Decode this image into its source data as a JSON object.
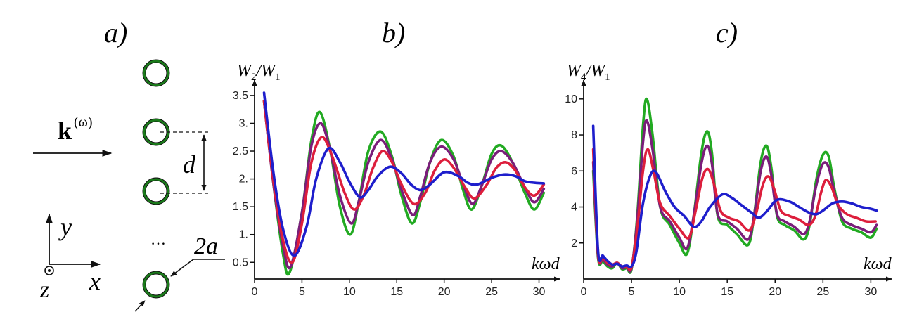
{
  "panel_a": {
    "label": "a)",
    "wave_vector_bold": "k",
    "wave_vector_sup": "(ω)",
    "spacing_label": "d",
    "radius_label": "2a",
    "ellipsis": "…",
    "axis_y": "y",
    "axis_x": "x",
    "axis_z": "z",
    "ring_color": "#1a7a1a"
  },
  "chart_data": [
    {
      "type": "line",
      "panel_label": "b)",
      "ylabel_main": "W",
      "ylabel_sub1": "2",
      "ylabel_sep": "/W",
      "ylabel_sub2": "1",
      "xlabel": "kωd",
      "xlim": [
        0,
        31
      ],
      "ylim": [
        0.2,
        3.6
      ],
      "x_ticks": [
        0,
        5,
        10,
        15,
        20,
        25,
        30
      ],
      "y_ticks": [
        0.5,
        1,
        1.5,
        2,
        2.5,
        3,
        3.5
      ],
      "y_tick_labels": [
        "0.5",
        "1.",
        "1.5",
        "2.",
        "2.5",
        "3.",
        "3.5"
      ],
      "series": [
        {
          "color": "#22aa22",
          "x": [
            1,
            2,
            3,
            3.7,
            5,
            6,
            6.9,
            8,
            9,
            10.1,
            11,
            12,
            13.3,
            14.5,
            15.5,
            16.6,
            17.5,
            18.5,
            19.7,
            21,
            22,
            22.9,
            24,
            25,
            26,
            27.2,
            28.5,
            29.5,
            30.5
          ],
          "y": [
            3.4,
            1.9,
            0.65,
            0.32,
            1.4,
            2.7,
            3.2,
            2.5,
            1.5,
            1.0,
            1.6,
            2.5,
            2.85,
            2.4,
            1.7,
            1.2,
            1.6,
            2.3,
            2.7,
            2.4,
            1.8,
            1.45,
            1.9,
            2.45,
            2.6,
            2.3,
            1.75,
            1.45,
            1.75
          ]
        },
        {
          "color": "#7a1e7a",
          "x": [
            1,
            2,
            3,
            3.8,
            5,
            6,
            7,
            8,
            9,
            10.2,
            11,
            12,
            13.3,
            14.5,
            15.5,
            16.7,
            17.5,
            18.5,
            19.7,
            21,
            22,
            23,
            24,
            25,
            26,
            27.2,
            28.5,
            29.5,
            30.5
          ],
          "y": [
            3.4,
            1.9,
            0.8,
            0.42,
            1.4,
            2.6,
            3.0,
            2.5,
            1.7,
            1.2,
            1.6,
            2.3,
            2.7,
            2.35,
            1.8,
            1.35,
            1.7,
            2.3,
            2.58,
            2.35,
            1.9,
            1.55,
            1.9,
            2.35,
            2.5,
            2.3,
            1.85,
            1.58,
            1.82
          ]
        },
        {
          "color": "#dd1e3c",
          "x": [
            1,
            2,
            3,
            4,
            5,
            6,
            7.1,
            8.2,
            9.5,
            10.5,
            11.5,
            12.5,
            13.5,
            14.5,
            15.5,
            16.8,
            18,
            19,
            20,
            21,
            22.2,
            23.2,
            24.5,
            25.5,
            26.5,
            27.5,
            28.5,
            29.5,
            30.5
          ],
          "y": [
            3.4,
            1.95,
            0.9,
            0.5,
            1.2,
            2.3,
            2.75,
            2.4,
            1.75,
            1.45,
            1.7,
            2.2,
            2.5,
            2.3,
            1.9,
            1.55,
            1.75,
            2.15,
            2.35,
            2.2,
            1.85,
            1.65,
            1.9,
            2.2,
            2.3,
            2.15,
            1.85,
            1.7,
            1.9
          ]
        },
        {
          "color": "#1e1ecc",
          "x": [
            1,
            2,
            3,
            4.2,
            5.5,
            6.5,
            7.8,
            9,
            10,
            11.1,
            12,
            13,
            14.3,
            15.5,
            16.5,
            17.5,
            18.5,
            20,
            21.5,
            22.5,
            23.5,
            25,
            26.3,
            27.5,
            28.5,
            29.5,
            30.5
          ],
          "y": [
            3.55,
            2.1,
            1.1,
            0.62,
            1.15,
            2.0,
            2.55,
            2.3,
            1.95,
            1.67,
            1.8,
            2.05,
            2.22,
            2.1,
            1.9,
            1.8,
            1.9,
            2.12,
            2.05,
            1.93,
            1.9,
            2.02,
            2.08,
            2.05,
            1.96,
            1.93,
            1.92
          ]
        }
      ]
    },
    {
      "type": "line",
      "panel_label": "c)",
      "ylabel_main": "W",
      "ylabel_sub1": "4",
      "ylabel_sep": "/W",
      "ylabel_sub2": "1",
      "xlabel": "kωd",
      "xlim": [
        0,
        31
      ],
      "ylim": [
        0,
        10.5
      ],
      "x_ticks": [
        0,
        5,
        10,
        15,
        20,
        25,
        30
      ],
      "y_ticks": [
        2,
        4,
        6,
        8,
        10
      ],
      "y_tick_labels": [
        "2",
        "4",
        "6",
        "8",
        "10"
      ],
      "series": [
        {
          "color": "#22aa22",
          "x": [
            1,
            1.5,
            2,
            2.5,
            3,
            3.5,
            4,
            4.5,
            5,
            5.6,
            6.2,
            6.6,
            7.2,
            8,
            9,
            10,
            10.8,
            11.5,
            12.3,
            12.9,
            13.4,
            14,
            15,
            16,
            17.2,
            17.8,
            18.5,
            19.1,
            19.6,
            20.2,
            21,
            22,
            23,
            23.6,
            24.3,
            25,
            25.6,
            26.2,
            27,
            28,
            29,
            30,
            30.6
          ],
          "y": [
            6.0,
            1.2,
            1.0,
            0.7,
            0.6,
            0.9,
            0.55,
            0.6,
            0.55,
            3.5,
            8.5,
            10.0,
            8.0,
            4.0,
            3.0,
            2.0,
            1.4,
            3.5,
            7.0,
            8.2,
            7.0,
            3.5,
            3.0,
            2.5,
            1.9,
            3.5,
            6.5,
            7.4,
            6.2,
            3.5,
            3.0,
            2.7,
            2.2,
            3.0,
            5.5,
            6.9,
            6.8,
            5.0,
            3.2,
            2.8,
            2.6,
            2.3,
            2.8
          ]
        },
        {
          "color": "#7a1e7a",
          "x": [
            1,
            1.5,
            2,
            2.5,
            3,
            3.5,
            4,
            4.5,
            5,
            5.6,
            6.2,
            6.6,
            7.2,
            8,
            9,
            10,
            10.8,
            11.5,
            12.3,
            12.9,
            13.4,
            14,
            15,
            16,
            17.2,
            17.8,
            18.5,
            19.1,
            19.6,
            20.2,
            21,
            22,
            23,
            23.6,
            24.3,
            25,
            25.6,
            26.2,
            27,
            28,
            29,
            30,
            30.6
          ],
          "y": [
            6.5,
            1.3,
            1.1,
            0.8,
            0.7,
            0.9,
            0.6,
            0.65,
            0.6,
            3.3,
            7.6,
            8.8,
            7.2,
            4.0,
            3.2,
            2.3,
            1.7,
            3.5,
            6.4,
            7.4,
            6.4,
            3.6,
            3.2,
            2.8,
            2.2,
            3.5,
            6.0,
            6.8,
            5.8,
            3.6,
            3.2,
            2.9,
            2.5,
            3.2,
            5.2,
            6.4,
            6.2,
            4.8,
            3.4,
            3.0,
            2.8,
            2.6,
            3.0
          ]
        },
        {
          "color": "#dd1e3c",
          "x": [
            1,
            1.5,
            2,
            2.5,
            3,
            3.5,
            4,
            4.5,
            5,
            5.6,
            6.2,
            6.7,
            7.3,
            8,
            9,
            10,
            11,
            11.7,
            12.4,
            13,
            13.6,
            14.3,
            15.2,
            16.2,
            17.3,
            18,
            18.7,
            19.3,
            19.9,
            20.6,
            21.5,
            22.5,
            23.5,
            24.2,
            24.8,
            25.3,
            25.9,
            26.6,
            27.5,
            28.5,
            29.5,
            30.5
          ],
          "y": [
            7.2,
            1.4,
            1.2,
            0.9,
            0.8,
            0.9,
            0.7,
            0.7,
            0.65,
            2.8,
            6.0,
            7.2,
            6.0,
            4.2,
            3.5,
            2.8,
            2.3,
            3.8,
            5.6,
            6.1,
            5.3,
            3.8,
            3.4,
            3.2,
            2.7,
            3.6,
            5.2,
            5.7,
            5.0,
            3.8,
            3.5,
            3.3,
            3.0,
            3.5,
            4.8,
            5.5,
            5.1,
            4.1,
            3.6,
            3.4,
            3.2,
            3.2
          ]
        },
        {
          "color": "#1e1ecc",
          "x": [
            1,
            1.5,
            2,
            2.5,
            3,
            3.5,
            4,
            4.5,
            5,
            5.5,
            6.2,
            7,
            7.6,
            8.5,
            9.5,
            10.5,
            11.5,
            12.3,
            13.2,
            14.5,
            15.5,
            16.5,
            17.5,
            18.3,
            19.2,
            20.2,
            21.5,
            22.5,
            23.5,
            24.3,
            25,
            26,
            27,
            28,
            29,
            30,
            30.6
          ],
          "y": [
            8.5,
            1.6,
            1.3,
            1.0,
            0.8,
            0.85,
            0.7,
            0.75,
            0.7,
            1.5,
            4.2,
            5.8,
            5.9,
            4.9,
            4.0,
            3.5,
            2.9,
            3.2,
            4.0,
            4.7,
            4.5,
            4.1,
            3.7,
            3.4,
            3.8,
            4.4,
            4.3,
            4.0,
            3.7,
            3.6,
            3.8,
            4.2,
            4.3,
            4.2,
            4.0,
            3.9,
            3.8
          ]
        }
      ]
    }
  ]
}
